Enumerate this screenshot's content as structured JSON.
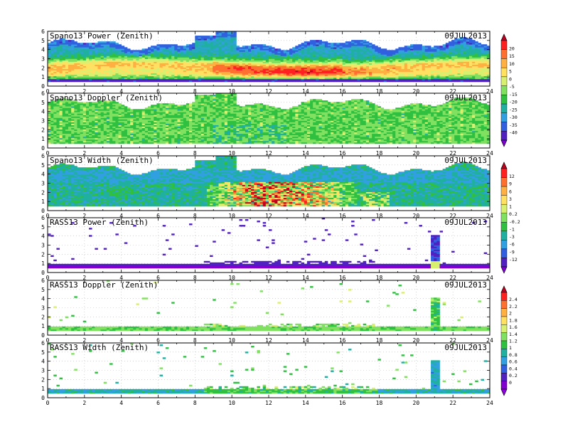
{
  "chart_data": [
    {
      "type": "heatmap",
      "title": "Spano13 Power (Zenith)",
      "date": "09JUL2013",
      "colorbar": "power",
      "x_ticks": [
        "0",
        "2",
        "4",
        "6",
        "8",
        "10",
        "12",
        "14",
        "16",
        "18",
        "20",
        "22",
        "24"
      ],
      "y_ticks": [
        "0",
        "1",
        "2",
        "3",
        "4",
        "5",
        "6"
      ],
      "xlim": [
        0,
        24
      ],
      "ylim": [
        0,
        6
      ]
    },
    {
      "type": "heatmap",
      "title": "Spano13 Doppler (Zenith)",
      "date": "09JUL2013",
      "colorbar": "power",
      "x_ticks": [
        "0",
        "2",
        "4",
        "6",
        "8",
        "10",
        "12",
        "14",
        "16",
        "18",
        "20",
        "22",
        "24"
      ],
      "y_ticks": [
        "0",
        "1",
        "2",
        "3",
        "4",
        "5",
        "6"
      ],
      "xlim": [
        0,
        24
      ],
      "ylim": [
        0,
        6
      ]
    },
    {
      "type": "heatmap",
      "title": "Spano13 Width (Zenith)",
      "date": "09JUL2013",
      "colorbar": "width",
      "x_ticks": [
        "0",
        "2",
        "4",
        "6",
        "8",
        "10",
        "12",
        "14",
        "16",
        "18",
        "20",
        "22",
        "24"
      ],
      "y_ticks": [
        "0",
        "1",
        "2",
        "3",
        "4",
        "5",
        "6"
      ],
      "xlim": [
        0,
        24
      ],
      "ylim": [
        0,
        6
      ]
    },
    {
      "type": "heatmap",
      "title": "RASS13 Power (Zenith)",
      "date": "09JUL2013",
      "colorbar": "width",
      "x_ticks": [
        "0",
        "2",
        "4",
        "6",
        "8",
        "10",
        "12",
        "14",
        "16",
        "18",
        "20",
        "22",
        "24"
      ],
      "y_ticks": [
        "0",
        "1",
        "2",
        "3",
        "4",
        "5",
        "6"
      ],
      "xlim": [
        0,
        24
      ],
      "ylim": [
        0,
        6
      ]
    },
    {
      "type": "heatmap",
      "title": "RASS13 Doppler (Zenith)",
      "date": "09JUL2013",
      "colorbar": "rass",
      "x_ticks": [
        "0",
        "2",
        "4",
        "6",
        "8",
        "10",
        "12",
        "14",
        "16",
        "18",
        "20",
        "22",
        "24"
      ],
      "y_ticks": [
        "0",
        "1",
        "2",
        "3",
        "4",
        "5",
        "6"
      ],
      "xlim": [
        0,
        24
      ],
      "ylim": [
        0,
        6
      ]
    },
    {
      "type": "heatmap",
      "title": "RASS13 Width (Zenith)",
      "date": "09JUL2013",
      "colorbar": "rass",
      "x_ticks": [
        "0",
        "2",
        "4",
        "6",
        "8",
        "10",
        "12",
        "14",
        "16",
        "18",
        "20",
        "22",
        "24"
      ],
      "y_ticks": [
        "0",
        "1",
        "2",
        "3",
        "4",
        "5",
        "6"
      ],
      "xlim": [
        0,
        24
      ],
      "ylim": [
        0,
        6
      ]
    }
  ],
  "colorbars": {
    "power": {
      "labels": [
        "20",
        "15",
        "10",
        "5",
        "0",
        "-5",
        "-15",
        "-20",
        "-25",
        "-30",
        "-35",
        "-40"
      ],
      "colors": [
        "#c00020",
        "#ff2020",
        "#ff7030",
        "#ffb040",
        "#ffe060",
        "#d8f070",
        "#80e060",
        "#30c040",
        "#20b0a0",
        "#30a0e0",
        "#3060e0",
        "#5020c0",
        "#8000d0"
      ]
    },
    "width": {
      "labels": [
        "12",
        "9",
        "6",
        "3",
        "1",
        "0.2",
        "-0.2",
        "-1",
        "-3",
        "-6",
        "-9",
        "-12"
      ],
      "colors": [
        "#c00020",
        "#ff2020",
        "#ff7030",
        "#ffb040",
        "#ffe060",
        "#d8f070",
        "#80e060",
        "#30c040",
        "#20b0a0",
        "#30a0e0",
        "#3060e0",
        "#5020c0",
        "#8000d0"
      ]
    },
    "rass": {
      "labels": [
        "2.4",
        "2.2",
        "2",
        "1.8",
        "1.6",
        "1.4",
        "1.2",
        "1",
        "0.8",
        "0.6",
        "0.4",
        "0.2",
        "0"
      ],
      "colors": [
        "#c00020",
        "#ff2020",
        "#ff7030",
        "#ffb040",
        "#ffe060",
        "#d8f070",
        "#80e060",
        "#30c040",
        "#20b0a0",
        "#30a0e0",
        "#3060e0",
        "#5020c0",
        "#8000d0",
        "#9000e0"
      ]
    }
  }
}
